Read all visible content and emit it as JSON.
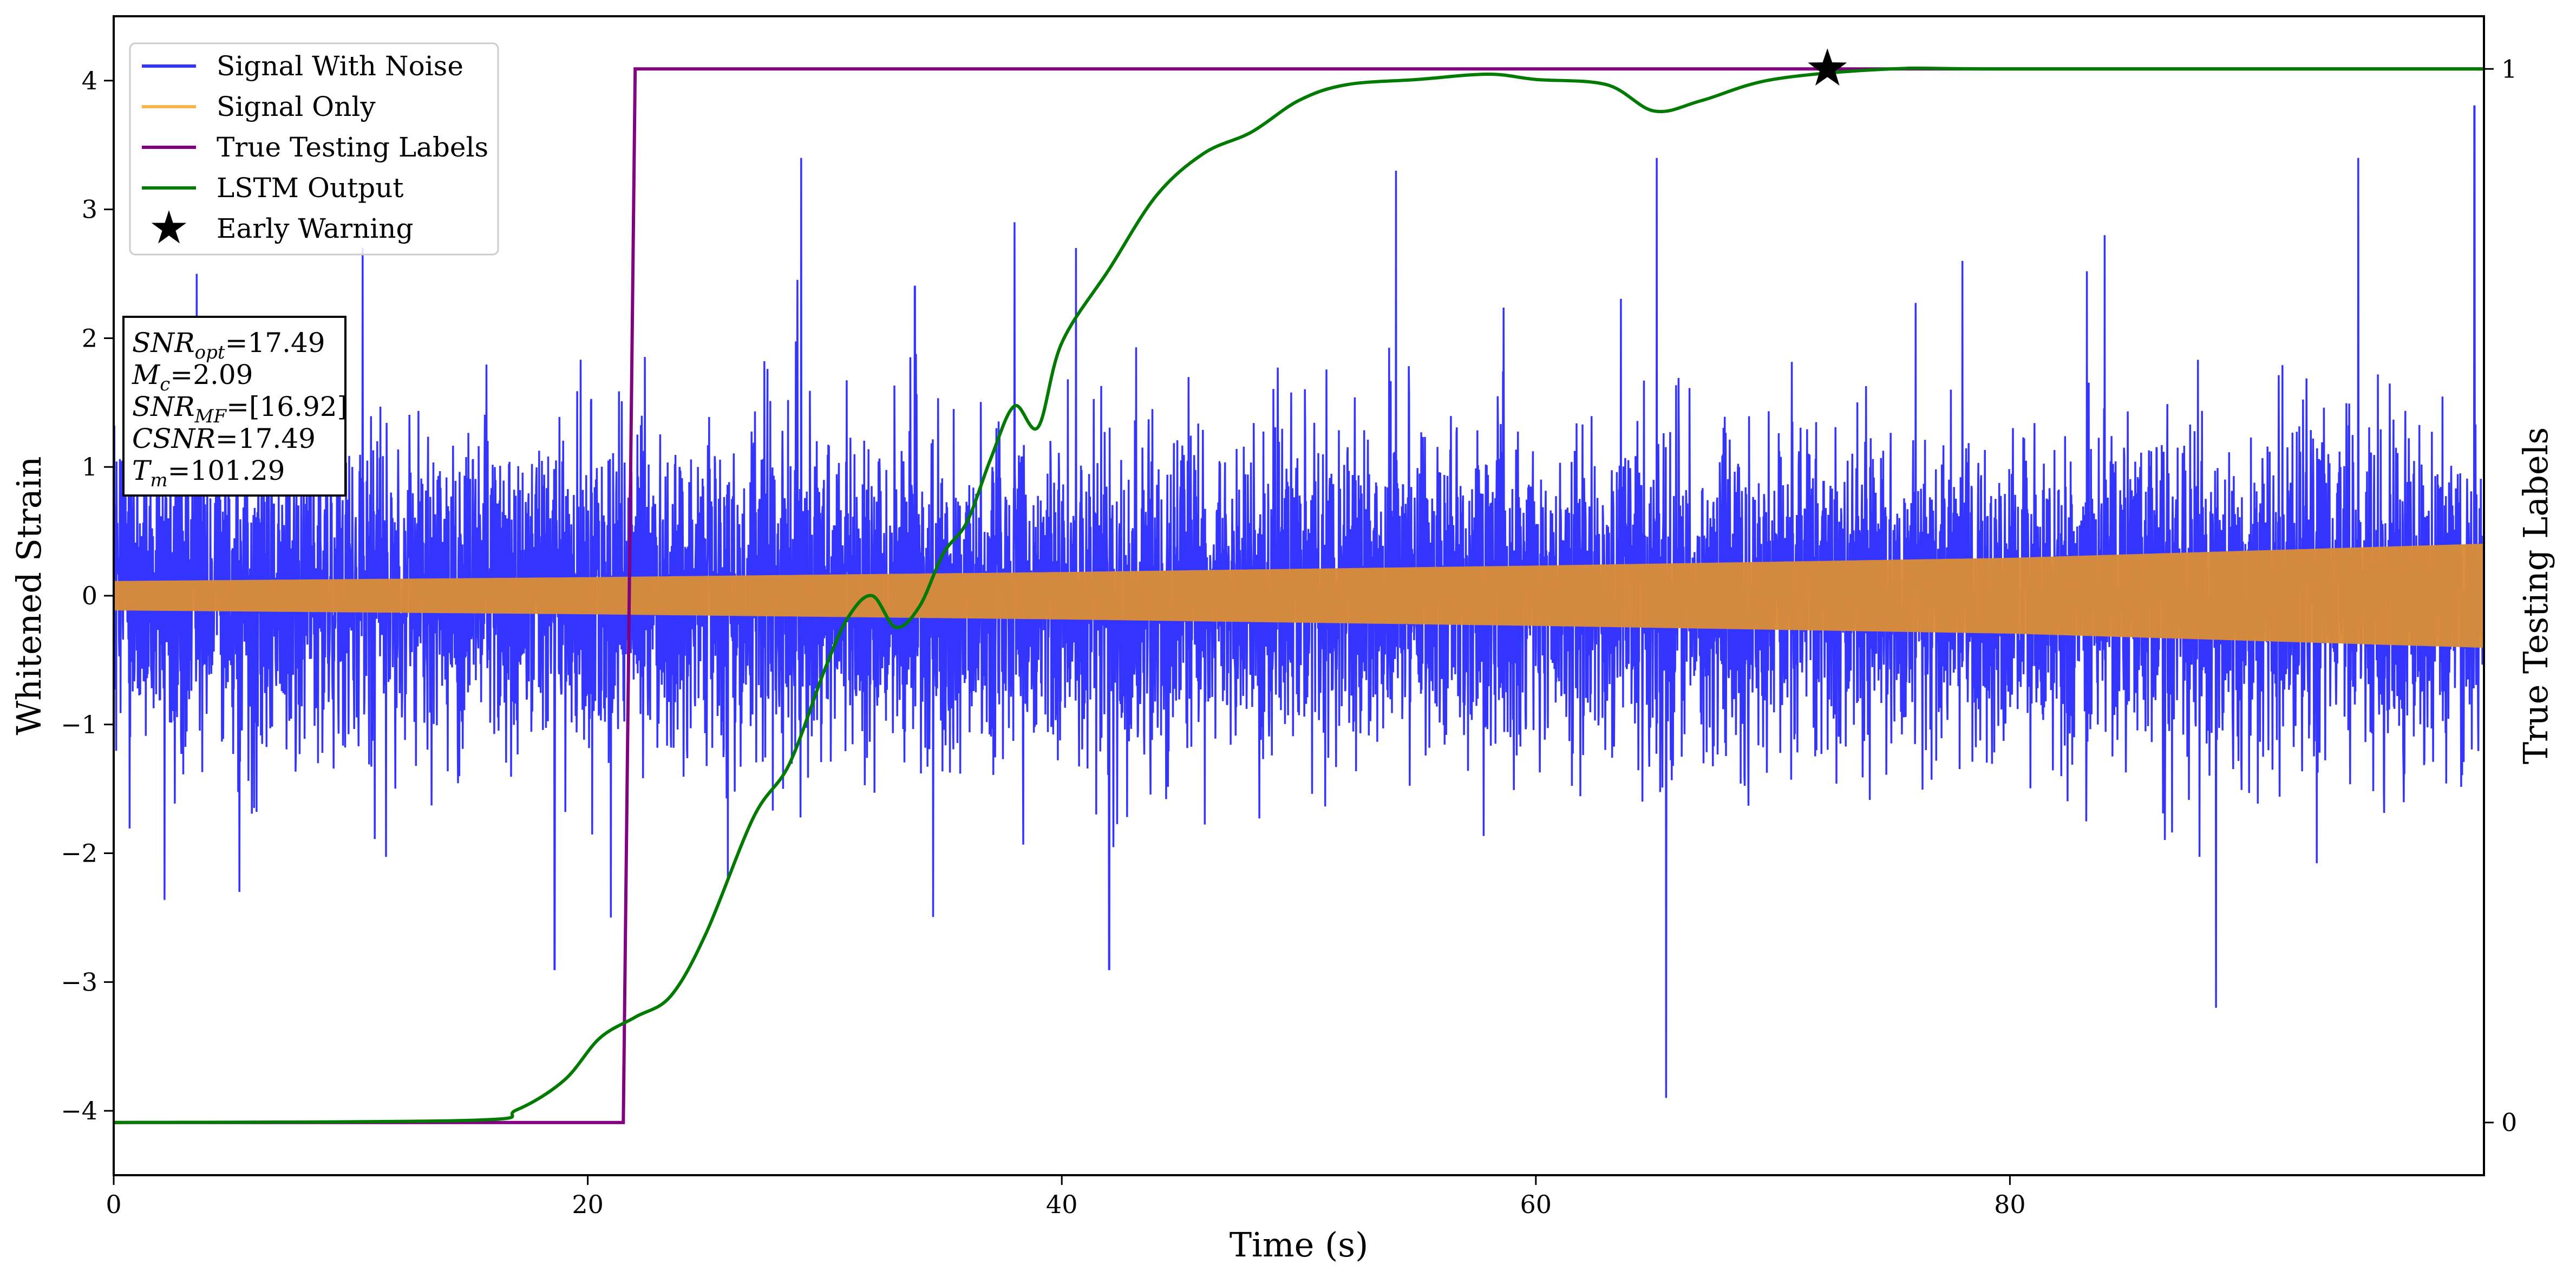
{
  "chart_data": {
    "type": "line",
    "title": "",
    "xlabel": "Time (s)",
    "ylabel": "Whitened Strain",
    "y2label": "True Testing Labels",
    "xlim": [
      0,
      100
    ],
    "ylim": [
      -4.5,
      4.5
    ],
    "y2lim": [
      -0.05,
      1.05
    ],
    "xticks": [
      0,
      20,
      40,
      60,
      80
    ],
    "xtick_labels": [
      "0",
      "20",
      "40",
      "60",
      "80"
    ],
    "yticks": [
      -4,
      -3,
      -2,
      -1,
      0,
      1,
      2,
      3,
      4
    ],
    "ytick_labels": [
      "−4",
      "−3",
      "−2",
      "−1",
      "0",
      "1",
      "2",
      "3",
      "4"
    ],
    "y2ticks": [
      0,
      1
    ],
    "y2tick_labels": [
      "0",
      "1"
    ],
    "grid": false,
    "legend_position": "top-left",
    "series": [
      {
        "name": "Signal With Noise",
        "color": "#3434ff",
        "axis": "left",
        "description_values": {
          "x_range": [
            0,
            100
          ],
          "typical_envelope": [
            -1.4,
            1.4
          ],
          "spikes": [
            {
              "x": 3.5,
              "y": 2.5
            },
            {
              "x": 5.3,
              "y": -2.3
            },
            {
              "x": 10.5,
              "y": 2.7
            },
            {
              "x": 18.6,
              "y": -2.9
            },
            {
              "x": 29.0,
              "y": 3.4
            },
            {
              "x": 33.8,
              "y": 2.4
            },
            {
              "x": 38.0,
              "y": 2.9
            },
            {
              "x": 40.6,
              "y": 2.7
            },
            {
              "x": 42.0,
              "y": -2.9
            },
            {
              "x": 54.1,
              "y": 3.3
            },
            {
              "x": 65.1,
              "y": 3.4
            },
            {
              "x": 65.5,
              "y": -3.9
            },
            {
              "x": 78.0,
              "y": 2.6
            },
            {
              "x": 84.0,
              "y": 2.8
            },
            {
              "x": 88.7,
              "y": -3.2
            },
            {
              "x": 94.7,
              "y": 3.4
            },
            {
              "x": 99.6,
              "y": 3.8
            }
          ]
        }
      },
      {
        "name": "Signal Only",
        "color": "#d98c38",
        "axis": "left",
        "amplitude": {
          "x": [
            0,
            20,
            40,
            60,
            80,
            100
          ],
          "y": [
            0.11,
            0.14,
            0.18,
            0.23,
            0.29,
            0.4
          ]
        }
      },
      {
        "name": "True Testing Labels",
        "color": "#800080",
        "axis": "right",
        "x": [
          0,
          21.5,
          22.0,
          100
        ],
        "y": [
          0,
          0,
          1,
          1
        ]
      },
      {
        "name": "LSTM Output",
        "color": "#007a00",
        "axis": "right",
        "x": [
          0,
          15,
          17,
          19,
          20.5,
          22,
          23.5,
          25,
          27,
          28.5,
          30,
          31,
          32,
          33,
          34,
          35,
          36,
          37,
          38,
          39,
          40,
          42,
          44,
          46,
          48,
          50,
          52,
          55,
          58,
          60,
          63,
          65,
          67,
          70,
          75,
          80,
          100
        ],
        "y": [
          0,
          0.002,
          0.012,
          0.04,
          0.08,
          0.1,
          0.12,
          0.18,
          0.29,
          0.34,
          0.43,
          0.48,
          0.5,
          0.47,
          0.49,
          0.54,
          0.57,
          0.63,
          0.68,
          0.66,
          0.74,
          0.81,
          0.88,
          0.92,
          0.94,
          0.97,
          0.985,
          0.99,
          0.995,
          0.99,
          0.985,
          0.96,
          0.97,
          0.99,
          1.0,
          1.0,
          1.0
        ]
      }
    ],
    "early_warning": {
      "label": "Early Warning",
      "x": 72.3,
      "y": 1.0,
      "color": "#000000",
      "marker": "star"
    },
    "annotation_lines": [
      {
        "math": "SNR",
        "sub": "opt",
        "rest": "=17.49"
      },
      {
        "math": "M",
        "sub": "c",
        "rest": "=2.09"
      },
      {
        "math": "SNR",
        "sub": "MF",
        "rest": "=[16.92]"
      },
      {
        "math": "CSNR",
        "sub": "",
        "rest": "=17.49"
      },
      {
        "math": "T",
        "sub": "m",
        "rest": "=101.29"
      }
    ]
  }
}
